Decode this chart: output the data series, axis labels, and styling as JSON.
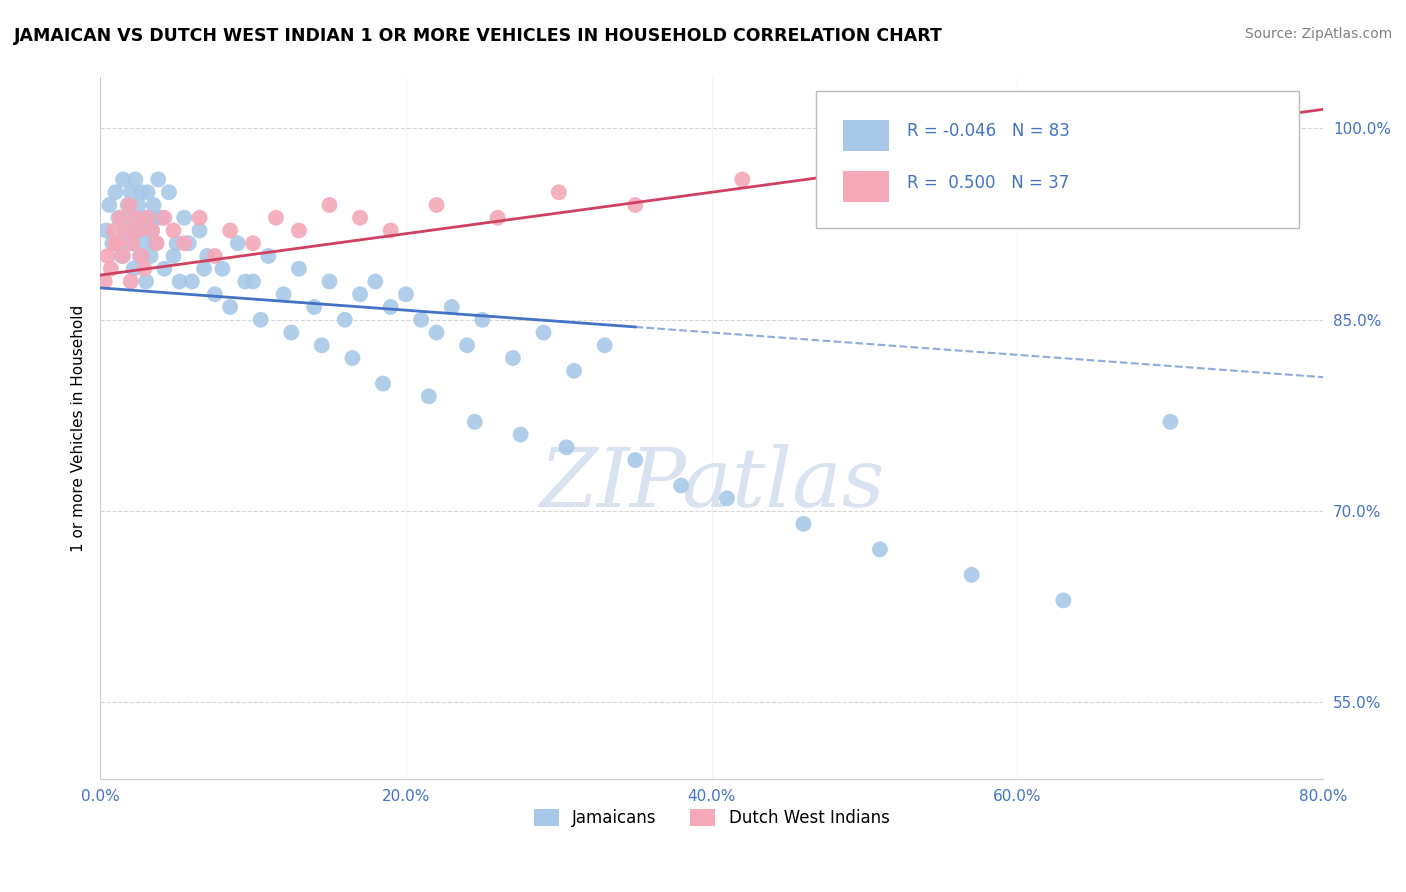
{
  "title": "JAMAICAN VS DUTCH WEST INDIAN 1 OR MORE VEHICLES IN HOUSEHOLD CORRELATION CHART",
  "source": "Source: ZipAtlas.com",
  "ylabel": "1 or more Vehicles in Household",
  "x_tick_labels": [
    "0.0%",
    "20.0%",
    "40.0%",
    "60.0%",
    "80.0%"
  ],
  "x_tick_vals": [
    0.0,
    20.0,
    40.0,
    60.0,
    80.0
  ],
  "y_tick_labels": [
    "55.0%",
    "70.0%",
    "85.0%",
    "100.0%"
  ],
  "y_tick_vals": [
    55.0,
    70.0,
    85.0,
    100.0
  ],
  "xlim": [
    0.0,
    80.0
  ],
  "ylim": [
    49.0,
    104.0
  ],
  "legend_labels": [
    "Jamaicans",
    "Dutch West Indians"
  ],
  "r_jamaican": "-0.046",
  "n_jamaican": "83",
  "r_dutch": "0.500",
  "n_dutch": "37",
  "blue_color": "#a8c8e8",
  "pink_color": "#f4a8b8",
  "blue_line_color": "#4472C4",
  "pink_line_color": "#d04060",
  "watermark": "ZIPatlas",
  "blue_solid_end_x": 35.0,
  "blue_line_x0": 0.0,
  "blue_line_y0": 87.5,
  "blue_line_x1": 80.0,
  "blue_line_y1": 80.5,
  "pink_line_x0": 0.0,
  "pink_line_y0": 88.5,
  "pink_line_x1": 80.0,
  "pink_line_y1": 101.5,
  "blue_scatter_x": [
    0.4,
    0.6,
    0.8,
    1.0,
    1.2,
    1.4,
    1.5,
    1.6,
    1.8,
    1.9,
    2.0,
    2.1,
    2.2,
    2.3,
    2.4,
    2.5,
    2.6,
    2.7,
    2.8,
    2.9,
    3.0,
    3.1,
    3.2,
    3.3,
    3.5,
    3.6,
    3.8,
    4.0,
    4.2,
    4.5,
    5.0,
    5.5,
    6.0,
    6.5,
    7.0,
    8.0,
    9.0,
    10.0,
    11.0,
    12.0,
    13.0,
    14.0,
    15.0,
    16.0,
    17.0,
    18.0,
    19.0,
    20.0,
    21.0,
    22.0,
    23.0,
    24.0,
    25.0,
    27.0,
    29.0,
    31.0,
    33.0,
    3.4,
    3.7,
    4.8,
    5.2,
    5.8,
    6.8,
    7.5,
    8.5,
    9.5,
    10.5,
    12.5,
    14.5,
    16.5,
    18.5,
    21.5,
    24.5,
    27.5,
    30.5,
    35.0,
    38.0,
    41.0,
    46.0,
    51.0,
    57.0,
    63.0,
    70.0
  ],
  "blue_scatter_y": [
    92.0,
    94.0,
    91.0,
    95.0,
    93.0,
    90.0,
    96.0,
    92.0,
    94.0,
    91.0,
    95.0,
    93.0,
    89.0,
    96.0,
    92.0,
    94.0,
    90.0,
    95.0,
    91.0,
    93.0,
    88.0,
    95.0,
    92.0,
    90.0,
    94.0,
    91.0,
    96.0,
    93.0,
    89.0,
    95.0,
    91.0,
    93.0,
    88.0,
    92.0,
    90.0,
    89.0,
    91.0,
    88.0,
    90.0,
    87.0,
    89.0,
    86.0,
    88.0,
    85.0,
    87.0,
    88.0,
    86.0,
    87.0,
    85.0,
    84.0,
    86.0,
    83.0,
    85.0,
    82.0,
    84.0,
    81.0,
    83.0,
    92.0,
    93.0,
    90.0,
    88.0,
    91.0,
    89.0,
    87.0,
    86.0,
    88.0,
    85.0,
    84.0,
    83.0,
    82.0,
    80.0,
    79.0,
    77.0,
    76.0,
    75.0,
    74.0,
    72.0,
    71.0,
    69.0,
    67.0,
    65.0,
    63.0,
    77.0
  ],
  "pink_scatter_x": [
    0.3,
    0.5,
    0.7,
    0.9,
    1.1,
    1.3,
    1.5,
    1.7,
    1.9,
    2.1,
    2.3,
    2.5,
    2.7,
    2.9,
    3.1,
    3.4,
    3.7,
    4.2,
    4.8,
    5.5,
    6.5,
    7.5,
    8.5,
    10.0,
    11.5,
    13.0,
    15.0,
    17.0,
    19.0,
    22.0,
    26.0,
    30.0,
    35.0,
    42.0,
    55.0,
    1.0,
    2.0
  ],
  "pink_scatter_y": [
    88.0,
    90.0,
    89.0,
    92.0,
    91.0,
    93.0,
    90.0,
    92.0,
    94.0,
    91.0,
    93.0,
    92.0,
    90.0,
    89.0,
    93.0,
    92.0,
    91.0,
    93.0,
    92.0,
    91.0,
    93.0,
    90.0,
    92.0,
    91.0,
    93.0,
    92.0,
    94.0,
    93.0,
    92.0,
    94.0,
    93.0,
    95.0,
    94.0,
    96.0,
    95.0,
    91.0,
    88.0
  ]
}
